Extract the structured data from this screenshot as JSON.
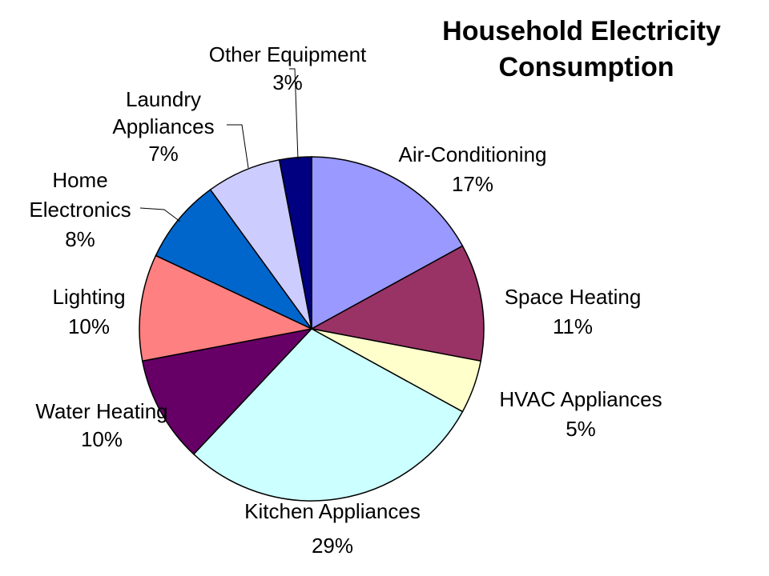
{
  "chart_data": {
    "type": "pie",
    "title_lines": [
      "Household Electricity",
      "Consumption"
    ],
    "slices": [
      {
        "label_lines": [
          "Air-Conditioning"
        ],
        "pct_label": "17%",
        "value": 17,
        "color": "#9999ff"
      },
      {
        "label_lines": [
          "Space Heating"
        ],
        "pct_label": "11%",
        "value": 11,
        "color": "#993366"
      },
      {
        "label_lines": [
          "HVAC Appliances"
        ],
        "pct_label": "5%",
        "value": 5,
        "color": "#ffffcc"
      },
      {
        "label_lines": [
          "Kitchen Appliances"
        ],
        "pct_label": "29%",
        "value": 29,
        "color": "#ccffff"
      },
      {
        "label_lines": [
          "Water Heating"
        ],
        "pct_label": "10%",
        "value": 10,
        "color": "#660066"
      },
      {
        "label_lines": [
          "Lighting"
        ],
        "pct_label": "10%",
        "value": 10,
        "color": "#ff8080"
      },
      {
        "label_lines": [
          "Home",
          "Electronics"
        ],
        "pct_label": "8%",
        "value": 8,
        "color": "#0066cc"
      },
      {
        "label_lines": [
          "Laundry",
          "Appliances"
        ],
        "pct_label": "7%",
        "value": 7,
        "color": "#ccccff"
      },
      {
        "label_lines": [
          "Other Equipment"
        ],
        "pct_label": "3%",
        "value": 3,
        "color": "#000080"
      }
    ]
  }
}
